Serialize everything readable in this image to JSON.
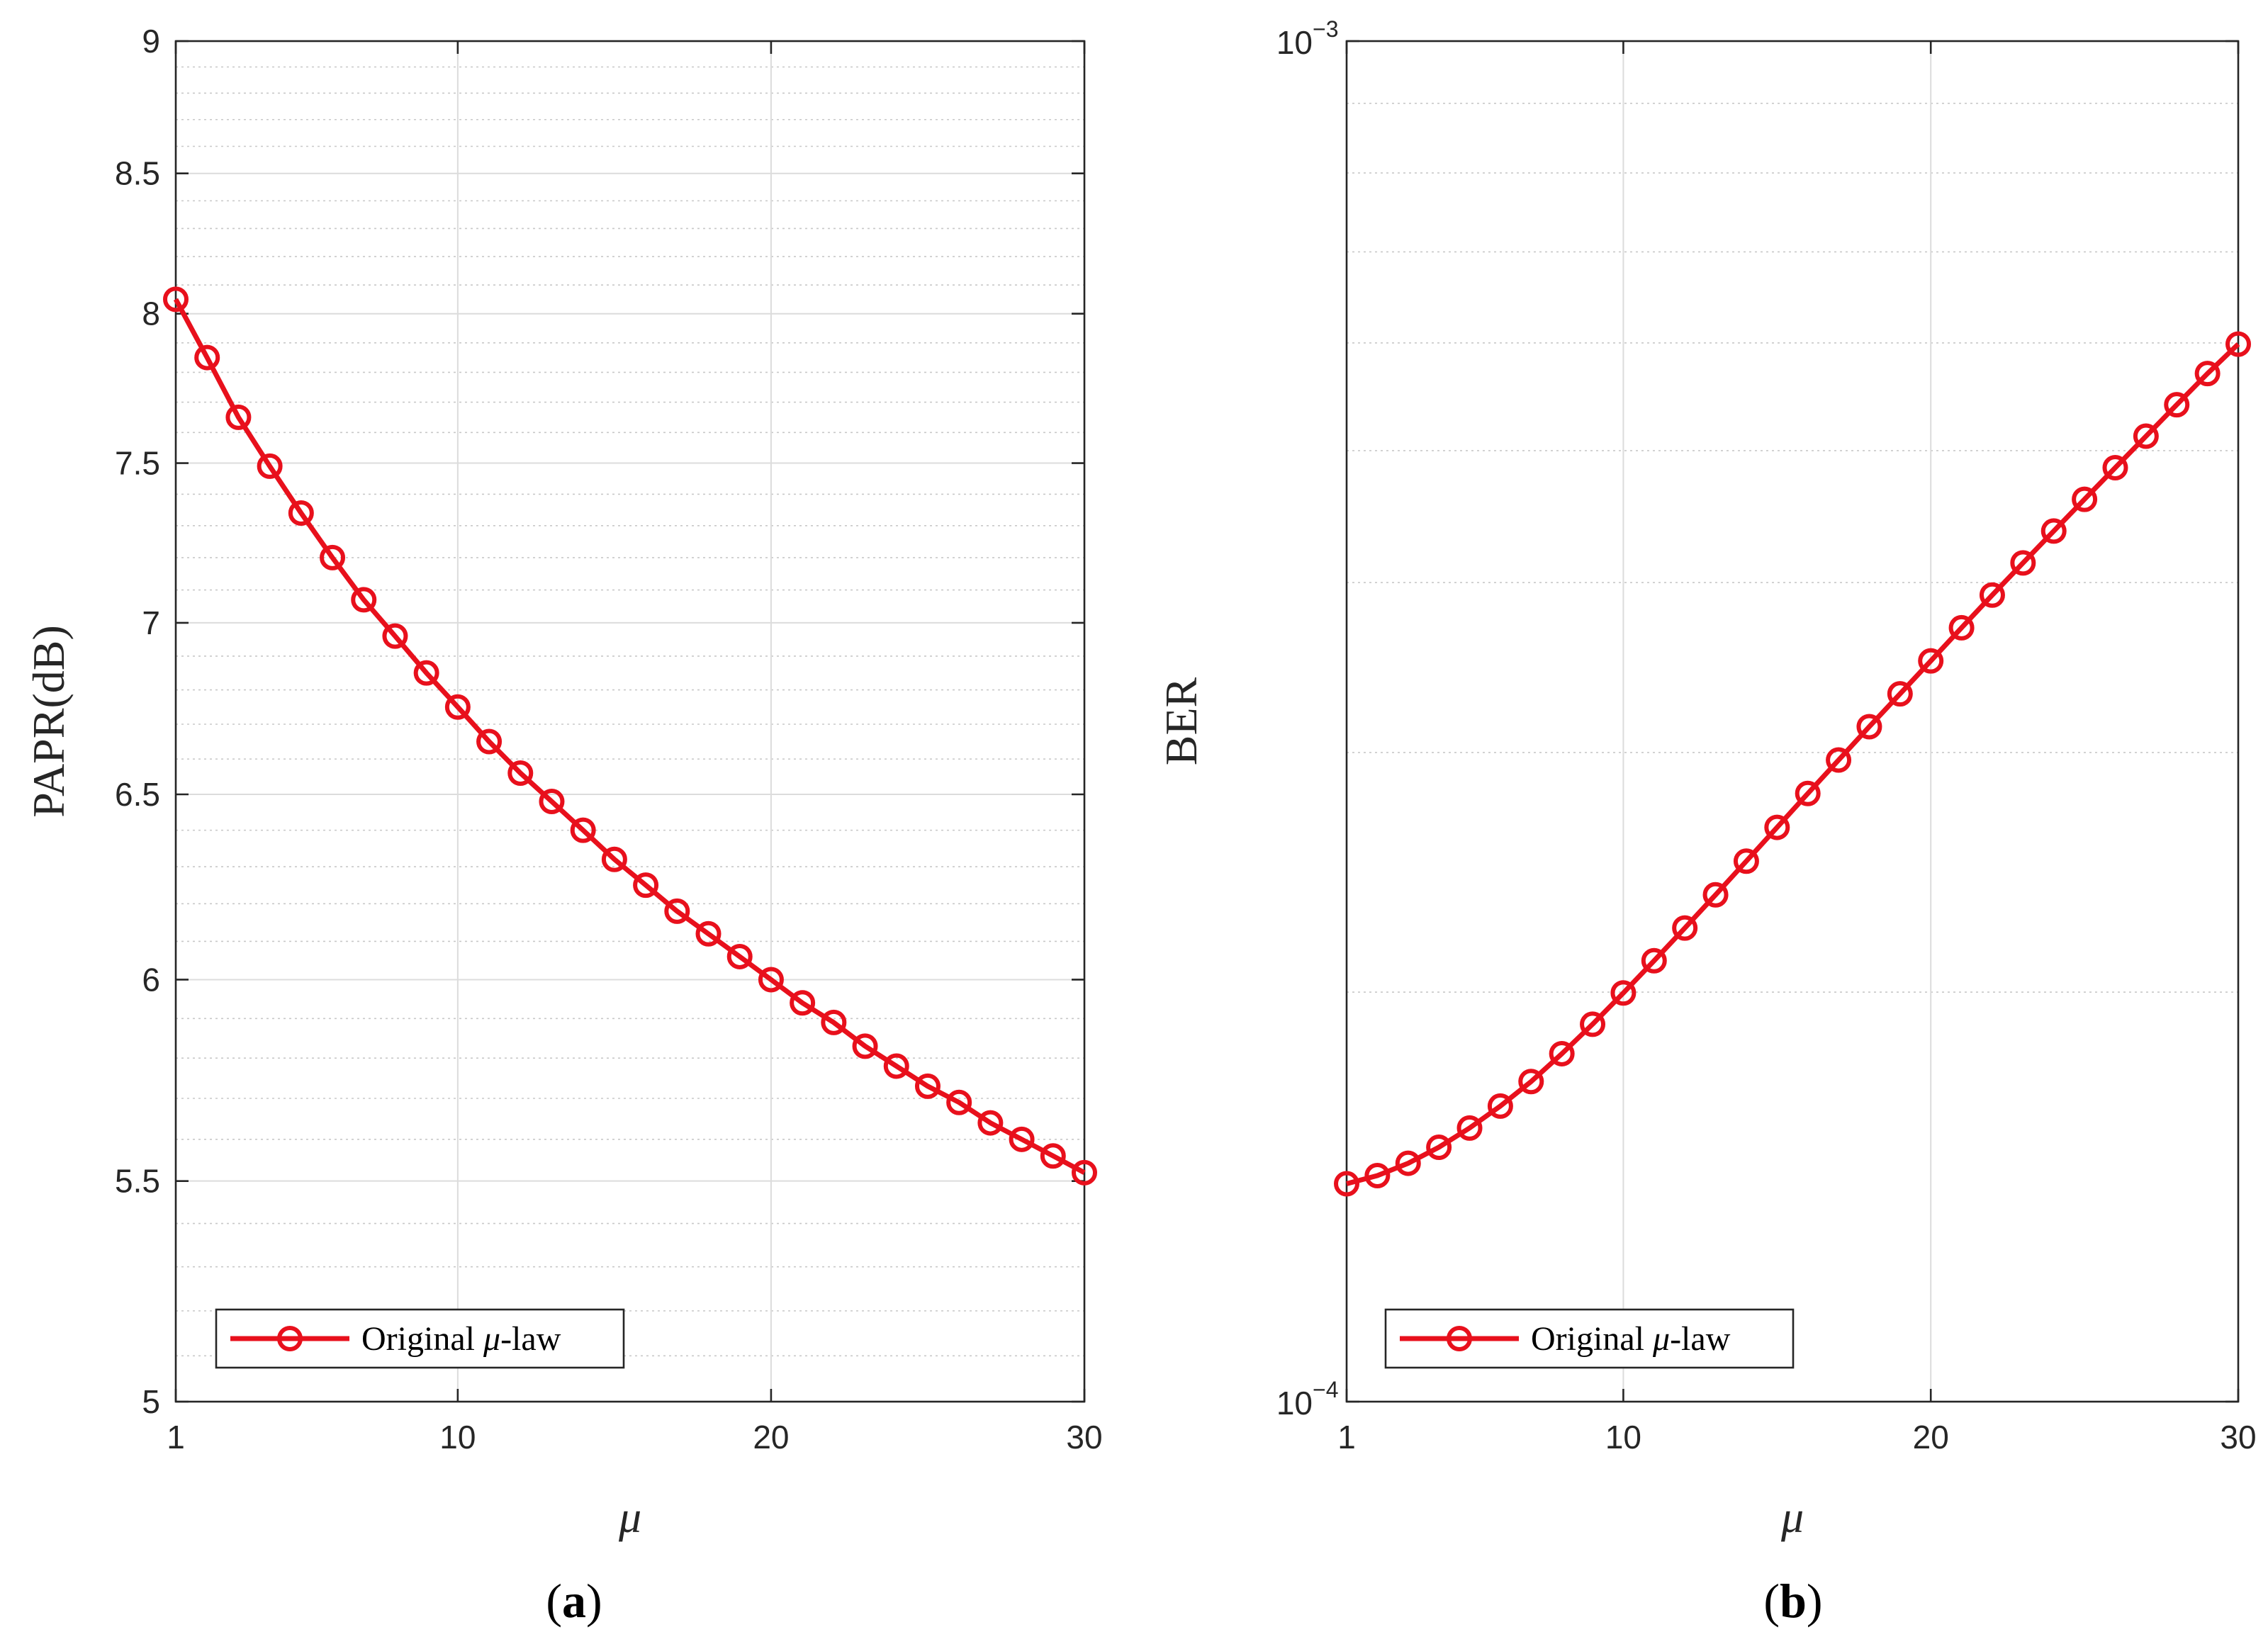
{
  "chart_data": [
    {
      "type": "line",
      "panel_label": "a",
      "xlabel": "μ",
      "ylabel": "PAPR(dB)",
      "xlim": [
        1,
        30
      ],
      "ylim": [
        5,
        9
      ],
      "yscale": "log",
      "xticks": [
        1,
        10,
        20,
        30
      ],
      "xtick_labels": [
        "1",
        "10",
        "20",
        "30"
      ],
      "yticks": [
        5,
        5.5,
        6,
        6.5,
        7,
        7.5,
        8,
        8.5,
        9
      ],
      "ytick_labels": [
        "5",
        "5.5",
        "6",
        "6.5",
        "7",
        "7.5",
        "8",
        "8.5",
        "9"
      ],
      "grid": true,
      "legend_position": "bottom-left",
      "color": "#e8101c",
      "series": [
        {
          "name_prefix": "Original ",
          "name_symbol": "μ",
          "name_suffix": "-law",
          "x": [
            1,
            2,
            3,
            4,
            5,
            6,
            7,
            8,
            9,
            10,
            11,
            12,
            13,
            14,
            15,
            16,
            17,
            18,
            19,
            20,
            21,
            22,
            23,
            24,
            25,
            26,
            27,
            28,
            29,
            30
          ],
          "y": [
            8.05,
            7.85,
            7.65,
            7.49,
            7.34,
            7.2,
            7.07,
            6.96,
            6.85,
            6.75,
            6.65,
            6.56,
            6.48,
            6.4,
            6.32,
            6.25,
            6.18,
            6.12,
            6.06,
            6.0,
            5.94,
            5.89,
            5.83,
            5.78,
            5.73,
            5.69,
            5.64,
            5.6,
            5.56,
            5.52
          ]
        }
      ]
    },
    {
      "type": "line",
      "panel_label": "b",
      "xlabel": "μ",
      "ylabel": "BER",
      "xlim": [
        1,
        30
      ],
      "ylim": [
        0.0001,
        0.001
      ],
      "yscale": "log",
      "xticks": [
        1,
        10,
        20,
        30
      ],
      "xtick_labels": [
        "1",
        "10",
        "20",
        "30"
      ],
      "yticks": [
        0.0001,
        0.001
      ],
      "ytick_labels": [
        {
          "base": "10",
          "exp": "−4"
        },
        {
          "base": "10",
          "exp": "−3"
        }
      ],
      "grid": true,
      "legend_position": "bottom-left",
      "color": "#e8101c",
      "series": [
        {
          "name_prefix": "Original ",
          "name_symbol": "μ",
          "name_suffix": "-law",
          "x": [
            1,
            2,
            3,
            4,
            5,
            6,
            7,
            8,
            9,
            10,
            11,
            12,
            13,
            14,
            15,
            16,
            17,
            18,
            19,
            20,
            21,
            22,
            23,
            24,
            25,
            26,
            27,
            28,
            29,
            30
          ],
          "y": [
            0.0001446,
            0.0001466,
            0.0001497,
            0.0001538,
            0.0001589,
            0.0001649,
            0.0001719,
            0.0001802,
            0.0001894,
            0.0001997,
            0.0002109,
            0.0002229,
            0.0002358,
            0.0002496,
            0.0002643,
            0.0002799,
            0.0002962,
            0.0003134,
            0.0003313,
            0.0003503,
            0.0003705,
            0.0003916,
            0.0004135,
            0.0004364,
            0.0004605,
            0.0004858,
            0.0005124,
            0.0005404,
            0.0005697,
            0.0005988
          ]
        }
      ]
    }
  ]
}
